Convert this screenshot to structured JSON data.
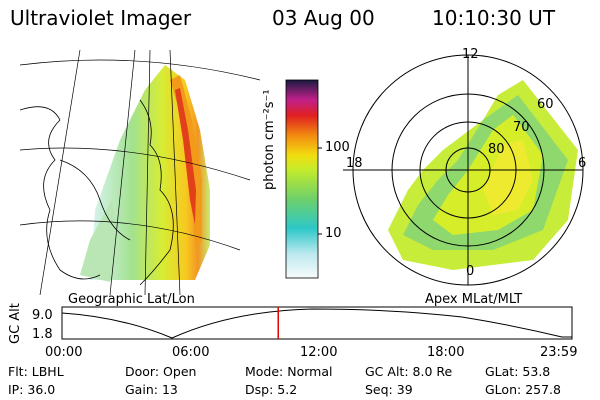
{
  "header": {
    "instrument": "Ultraviolet Imager",
    "date": "03 Aug 00",
    "time": "10:10:30 UT"
  },
  "colorbar": {
    "label": "photon cm⁻²s⁻¹",
    "ticks": [
      "100",
      "10"
    ]
  },
  "panels": {
    "geographic_label": "Geographic Lat/Lon",
    "apex_label": "Apex MLat/MLT"
  },
  "polar_plot": {
    "mlt_labels": {
      "top": "12",
      "left": "18",
      "right": "6",
      "bottom": "0"
    },
    "lat_labels": [
      "60",
      "70",
      "80"
    ]
  },
  "timeline": {
    "ylabel": "GC Alt",
    "y_ticks": [
      "9.0",
      "1.8"
    ],
    "x_ticks": [
      "00:00",
      "06:00",
      "12:00",
      "18:00",
      "23:59"
    ],
    "current_time_hours": 10.175,
    "cursor_color": "#e00000"
  },
  "status": {
    "row1": [
      {
        "label": "Flt:",
        "value": "LBHL"
      },
      {
        "label": "Door:",
        "value": "Open"
      },
      {
        "label": "Mode:",
        "value": "Normal"
      },
      {
        "label": "GC Alt:",
        "value": "8.0 Re"
      },
      {
        "label": "GLat:",
        "value": "53.8"
      }
    ],
    "row2": [
      {
        "label": "IP:",
        "value": "36.0"
      },
      {
        "label": "Gain:",
        "value": "13"
      },
      {
        "label": "Dsp:",
        "value": "5.2"
      },
      {
        "label": "Seq:",
        "value": "39"
      },
      {
        "label": "GLon:",
        "value": "257.8"
      }
    ]
  }
}
